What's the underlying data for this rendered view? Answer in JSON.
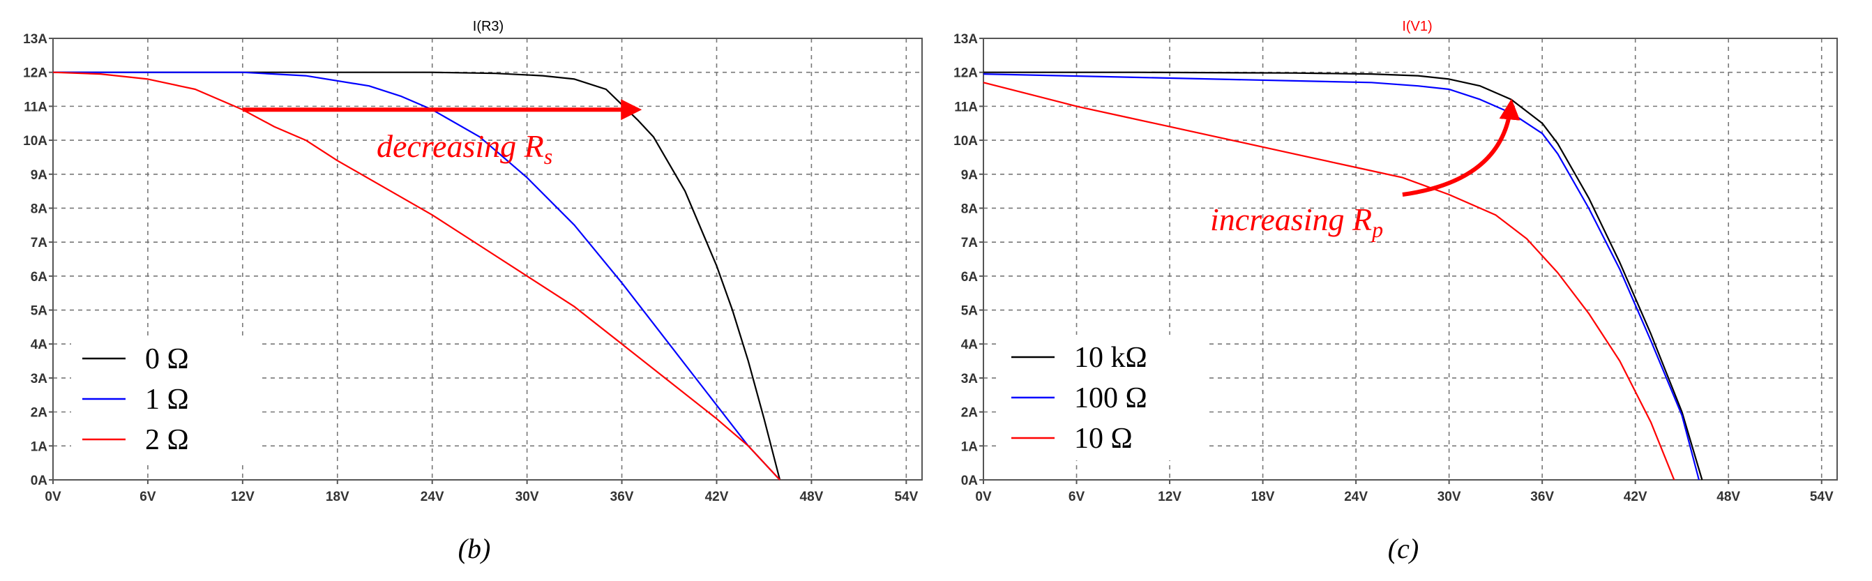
{
  "chart_data": [
    {
      "type": "line",
      "title": "I(R3)",
      "title_color": "#000000",
      "caption": "(b)",
      "xlim": [
        0,
        55
      ],
      "ylim": [
        0,
        13
      ],
      "x_ticks": [
        "0V",
        "6V",
        "12V",
        "18V",
        "24V",
        "30V",
        "36V",
        "42V",
        "48V",
        "54V"
      ],
      "y_ticks": [
        "0A",
        "1A",
        "2A",
        "3A",
        "4A",
        "5A",
        "6A",
        "7A",
        "8A",
        "9A",
        "10A",
        "11A",
        "12A",
        "13A"
      ],
      "grid": true,
      "legend_position": "bottom-left",
      "series": [
        {
          "name": "0 Ω",
          "color": "#000000",
          "points": [
            [
              0,
              12
            ],
            [
              10,
              12
            ],
            [
              20,
              12
            ],
            [
              24,
              12
            ],
            [
              28,
              11.97
            ],
            [
              31,
              11.9
            ],
            [
              33,
              11.8
            ],
            [
              35,
              11.5
            ],
            [
              37,
              10.6
            ],
            [
              38,
              10.1
            ],
            [
              40,
              8.5
            ],
            [
              42,
              6.3
            ],
            [
              43,
              5.0
            ],
            [
              44,
              3.5
            ],
            [
              45,
              1.8
            ],
            [
              46,
              0
            ]
          ]
        },
        {
          "name": "1 Ω",
          "color": "#0000ff",
          "points": [
            [
              0,
              12
            ],
            [
              8,
              12
            ],
            [
              12,
              12
            ],
            [
              16,
              11.9
            ],
            [
              20,
              11.6
            ],
            [
              22,
              11.3
            ],
            [
              24,
              10.9
            ],
            [
              27,
              10.1
            ],
            [
              30,
              8.9
            ],
            [
              33,
              7.5
            ],
            [
              36,
              5.8
            ],
            [
              39,
              4.0
            ],
            [
              42,
              2.2
            ],
            [
              44,
              1.0
            ],
            [
              46,
              0
            ]
          ]
        },
        {
          "name": "2 Ω",
          "color": "#ff0000",
          "points": [
            [
              0,
              12
            ],
            [
              3,
              11.95
            ],
            [
              6,
              11.8
            ],
            [
              9,
              11.5
            ],
            [
              12,
              10.9
            ],
            [
              14,
              10.4
            ],
            [
              16,
              10.0
            ],
            [
              18,
              9.4
            ],
            [
              21,
              8.6
            ],
            [
              24,
              7.8
            ],
            [
              27,
              6.9
            ],
            [
              30,
              6.0
            ],
            [
              33,
              5.1
            ],
            [
              36,
              4.0
            ],
            [
              39,
              2.9
            ],
            [
              42,
              1.8
            ],
            [
              44,
              1.0
            ],
            [
              46,
              0
            ]
          ]
        }
      ],
      "annotation": {
        "text": "decreasing",
        "subscript": "s",
        "symbol": "R",
        "color": "#ff0000"
      },
      "arrow": {
        "from": [
          12,
          10.9
        ],
        "to": [
          37,
          10.9
        ],
        "color": "#ff0000"
      }
    },
    {
      "type": "line",
      "title": "I(V1)",
      "title_color": "#ff0000",
      "caption": "(c)",
      "xlim": [
        0,
        55
      ],
      "ylim": [
        0,
        13
      ],
      "x_ticks": [
        "0V",
        "6V",
        "12V",
        "18V",
        "24V",
        "30V",
        "36V",
        "42V",
        "48V",
        "54V"
      ],
      "y_ticks": [
        "0A",
        "1A",
        "2A",
        "3A",
        "4A",
        "5A",
        "6A",
        "7A",
        "8A",
        "9A",
        "10A",
        "11A",
        "12A",
        "13A"
      ],
      "grid": true,
      "legend_position": "bottom-left",
      "series": [
        {
          "name": "10 kΩ",
          "color": "#000000",
          "points": [
            [
              0,
              12
            ],
            [
              10,
              12
            ],
            [
              20,
              11.98
            ],
            [
              25,
              11.95
            ],
            [
              28,
              11.9
            ],
            [
              30,
              11.8
            ],
            [
              32,
              11.6
            ],
            [
              34,
              11.2
            ],
            [
              36,
              10.5
            ],
            [
              37,
              9.9
            ],
            [
              39,
              8.3
            ],
            [
              41,
              6.4
            ],
            [
              43,
              4.3
            ],
            [
              45,
              2.0
            ],
            [
              46.3,
              0
            ]
          ]
        },
        {
          "name": "100 Ω",
          "color": "#0000ff",
          "points": [
            [
              0,
              11.95
            ],
            [
              10,
              11.85
            ],
            [
              20,
              11.75
            ],
            [
              25,
              11.7
            ],
            [
              28,
              11.6
            ],
            [
              30,
              11.5
            ],
            [
              32,
              11.2
            ],
            [
              34,
              10.8
            ],
            [
              36,
              10.2
            ],
            [
              37,
              9.6
            ],
            [
              39,
              8.0
            ],
            [
              41,
              6.2
            ],
            [
              43,
              4.1
            ],
            [
              45,
              1.9
            ],
            [
              46.1,
              0
            ]
          ]
        },
        {
          "name": "10 Ω",
          "color": "#ff0000",
          "points": [
            [
              0,
              11.7
            ],
            [
              3,
              11.35
            ],
            [
              6,
              11.0
            ],
            [
              9,
              10.7
            ],
            [
              12,
              10.4
            ],
            [
              15,
              10.1
            ],
            [
              18,
              9.8
            ],
            [
              21,
              9.5
            ],
            [
              24,
              9.2
            ],
            [
              27,
              8.9
            ],
            [
              30,
              8.4
            ],
            [
              33,
              7.8
            ],
            [
              35,
              7.1
            ],
            [
              37,
              6.1
            ],
            [
              39,
              4.9
            ],
            [
              41,
              3.5
            ],
            [
              43,
              1.7
            ],
            [
              44.5,
              0
            ]
          ]
        }
      ],
      "annotation": {
        "text": "increasing",
        "subscript": "p",
        "symbol": "R",
        "color": "#ff0000"
      },
      "arrow": {
        "from": [
          27,
          8.4
        ],
        "to": [
          34,
          11.1
        ],
        "color": "#ff0000"
      }
    }
  ]
}
